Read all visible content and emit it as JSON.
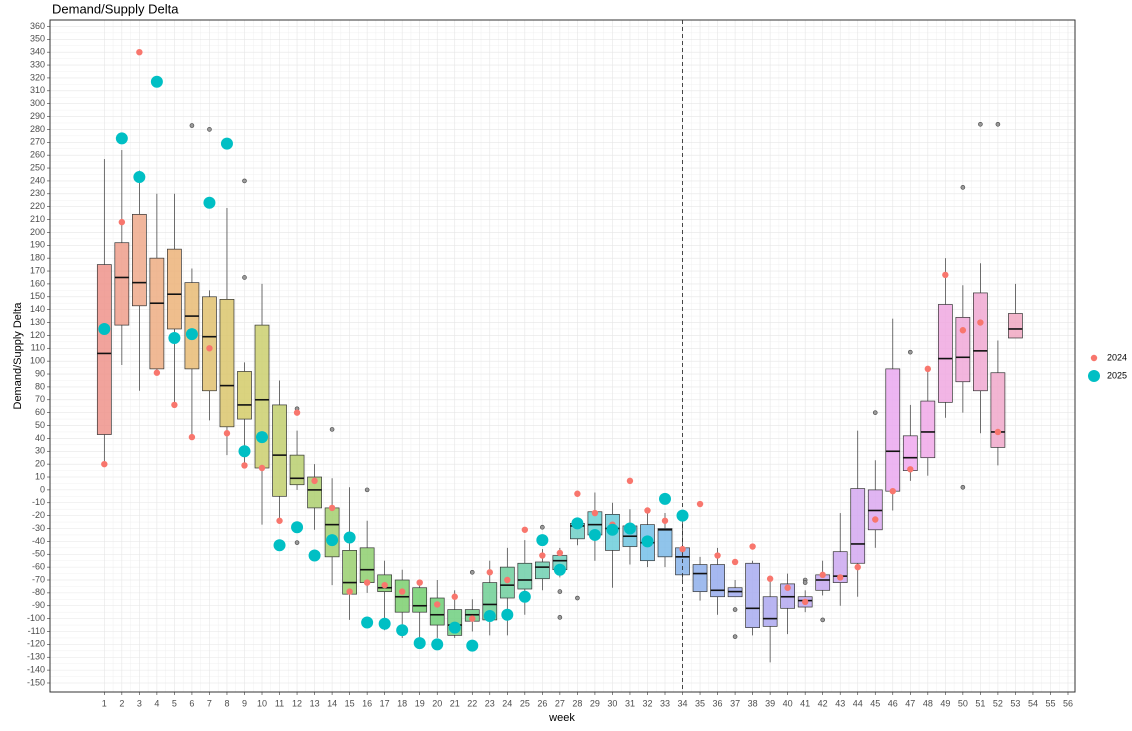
{
  "chart_data": {
    "type": "boxplot",
    "title": "Demand/Supply Delta",
    "x_label": "week",
    "y_label": "Demand/Supply Delta",
    "xlim": [
      -2.1,
      56.4
    ],
    "ylim": [
      -157,
      365
    ],
    "xticks": [
      1,
      2,
      3,
      4,
      5,
      6,
      7,
      8,
      9,
      10,
      11,
      12,
      13,
      14,
      15,
      16,
      17,
      18,
      19,
      20,
      21,
      22,
      23,
      24,
      25,
      26,
      27,
      28,
      29,
      30,
      31,
      32,
      33,
      34,
      35,
      36,
      37,
      38,
      39,
      40,
      41,
      42,
      43,
      44,
      45,
      46,
      47,
      48,
      49,
      50,
      51,
      52,
      53,
      54,
      55,
      56
    ],
    "yticks": [
      -150,
      -140,
      -130,
      -120,
      -110,
      -100,
      -90,
      -80,
      -70,
      -60,
      -50,
      -40,
      -30,
      -20,
      -10,
      0,
      10,
      20,
      30,
      40,
      50,
      60,
      70,
      80,
      90,
      100,
      110,
      120,
      130,
      140,
      150,
      160,
      170,
      180,
      190,
      200,
      210,
      220,
      230,
      240,
      250,
      260,
      270,
      280,
      290,
      300,
      310,
      320,
      330,
      340,
      350,
      360
    ],
    "grid": true,
    "reference_line": {
      "x": 34,
      "style": "dashed"
    },
    "legend_position": "right",
    "boxes": [
      {
        "week": 1,
        "low": 20,
        "q1": 43,
        "median": 106,
        "q3": 175,
        "high": 257,
        "color": "hsl(5,75%,74%)"
      },
      {
        "week": 2,
        "low": 97,
        "q1": 128,
        "median": 165,
        "q3": 192,
        "high": 264,
        "color": "hsl(11,75%,74%)"
      },
      {
        "week": 3,
        "low": 77,
        "q1": 143,
        "median": 161,
        "q3": 214,
        "high": 248,
        "color": "hsl(18,75%,74%)"
      },
      {
        "week": 4,
        "low": 91,
        "q1": 94,
        "median": 145,
        "q3": 180,
        "high": 230,
        "color": "hsl(24,75%,72%)"
      },
      {
        "week": 5,
        "low": 66,
        "q1": 125,
        "median": 152,
        "q3": 187,
        "high": 230,
        "color": "hsl(30,75%,70%)"
      },
      {
        "week": 6,
        "low": 41,
        "q1": 94,
        "median": 135,
        "q3": 161,
        "high": 172,
        "outliers": [
          283
        ],
        "color": "hsl(37,70%,68%)"
      },
      {
        "week": 7,
        "low": 54,
        "q1": 77,
        "median": 119,
        "q3": 150,
        "high": 155,
        "outliers": [
          280
        ],
        "color": "hsl(43,65%,66%)"
      },
      {
        "week": 8,
        "low": 27,
        "q1": 49,
        "median": 81,
        "q3": 148,
        "high": 219,
        "color": "hsl(49,60%,64%)"
      },
      {
        "week": 9,
        "low": 19,
        "q1": 55,
        "median": 66,
        "q3": 92,
        "high": 99,
        "outliers": [
          240,
          165
        ],
        "color": "hsl(55,55%,62%)"
      },
      {
        "week": 10,
        "low": -27,
        "q1": 17,
        "median": 70,
        "q3": 128,
        "high": 160,
        "color": "hsl(62,50%,62%)"
      },
      {
        "week": 11,
        "low": -24,
        "q1": -5,
        "median": 27,
        "q3": 66,
        "high": 85,
        "color": "hsl(68,50%,62%)"
      },
      {
        "week": 12,
        "low": 0,
        "q1": 4,
        "median": 9,
        "q3": 27,
        "high": 46,
        "outliers": [
          63,
          -41
        ],
        "color": "hsl(74,50%,62%)"
      },
      {
        "week": 13,
        "low": -31,
        "q1": -14,
        "median": 0,
        "q3": 10,
        "high": 20,
        "color": "hsl(81,50%,62%)"
      },
      {
        "week": 14,
        "low": -74,
        "q1": -52,
        "median": -27,
        "q3": -14,
        "high": 9,
        "outliers": [
          47
        ],
        "color": "hsl(87,50%,62%)"
      },
      {
        "week": 15,
        "low": -101,
        "q1": -81,
        "median": -72,
        "q3": -47,
        "high": 2,
        "color": "hsl(93,50%,62%)"
      },
      {
        "week": 16,
        "low": -80,
        "q1": -72,
        "median": -62,
        "q3": -45,
        "high": -24,
        "outliers": [
          0
        ],
        "color": "hsl(100,50%,62%)"
      },
      {
        "week": 17,
        "low": -109,
        "q1": -79,
        "median": -76,
        "q3": -66,
        "high": -55,
        "color": "hsl(106,50%,62%)"
      },
      {
        "week": 18,
        "low": -115,
        "q1": -95,
        "median": -83,
        "q3": -70,
        "high": -62,
        "color": "hsl(112,50%,62%)"
      },
      {
        "week": 19,
        "low": -115,
        "q1": -95,
        "median": -90,
        "q3": -76,
        "high": -70,
        "color": "hsl(118,50%,62%)"
      },
      {
        "week": 20,
        "low": -115,
        "q1": -105,
        "median": -97,
        "q3": -84,
        "high": -70,
        "color": "hsl(125,50%,62%)"
      },
      {
        "week": 21,
        "low": -115,
        "q1": -113,
        "median": -105,
        "q3": -93,
        "high": -78,
        "color": "hsl(131,50%,62%)"
      },
      {
        "week": 22,
        "low": -110,
        "q1": -102,
        "median": -97,
        "q3": -93,
        "high": -85,
        "outliers": [
          -64
        ],
        "color": "hsl(137,50%,62%)"
      },
      {
        "week": 23,
        "low": -113,
        "q1": -101,
        "median": -89,
        "q3": -72,
        "high": -55,
        "color": "hsl(144,50%,62%)"
      },
      {
        "week": 24,
        "low": -113,
        "q1": -84,
        "median": -74,
        "q3": -60,
        "high": -45,
        "color": "hsl(150,50%,62%)"
      },
      {
        "week": 25,
        "low": -97,
        "q1": -77,
        "median": -70,
        "q3": -57,
        "high": -39,
        "color": "hsl(156,50%,62%)"
      },
      {
        "week": 26,
        "low": -78,
        "q1": -69,
        "median": -60,
        "q3": -56,
        "high": -46,
        "outliers": [
          -29
        ],
        "color": "hsl(162,50%,62%)"
      },
      {
        "week": 27,
        "low": -68,
        "q1": -62,
        "median": -55,
        "q3": -51,
        "high": -45,
        "outliers": [
          -79,
          -99
        ],
        "color": "hsl(169,50%,62%)"
      },
      {
        "week": 28,
        "low": -43,
        "q1": -38,
        "median": -28,
        "q3": -26,
        "high": -24,
        "outliers": [
          -84
        ],
        "color": "hsl(175,50%,62%)"
      },
      {
        "week": 29,
        "low": -55,
        "q1": -35,
        "median": -27,
        "q3": -17,
        "high": -2,
        "color": "hsl(181,55%,62%)"
      },
      {
        "week": 30,
        "low": -76,
        "q1": -47,
        "median": -30,
        "q3": -19,
        "high": -10,
        "color": "hsl(188,60%,64%)"
      },
      {
        "week": 31,
        "low": -58,
        "q1": -44,
        "median": -36,
        "q3": -28,
        "high": -15,
        "color": "hsl(194,65%,66%)"
      },
      {
        "week": 32,
        "low": -60,
        "q1": -55,
        "median": -41,
        "q3": -27,
        "high": -15,
        "color": "hsl(200,70%,68%)"
      },
      {
        "week": 33,
        "low": -60,
        "q1": -52,
        "median": -31,
        "q3": -30,
        "high": -18,
        "color": "hsl(206,70%,70%)"
      },
      {
        "week": 34,
        "low": -70,
        "q1": -66,
        "median": -52,
        "q3": -45,
        "high": -20,
        "color": "hsl(213,70%,72%)"
      },
      {
        "week": 35,
        "low": -86,
        "q1": -79,
        "median": -65,
        "q3": -58,
        "high": -52,
        "color": "hsl(219,70%,74%)"
      },
      {
        "week": 36,
        "low": -97,
        "q1": -83,
        "median": -78,
        "q3": -58,
        "high": -45,
        "color": "hsl(225,70%,76%)"
      },
      {
        "week": 37,
        "low": -83,
        "q1": -83,
        "median": -79,
        "q3": -76,
        "high": -70,
        "outliers": [
          -93,
          -114
        ],
        "color": "hsl(232,70%,78%)"
      },
      {
        "week": 38,
        "low": -113,
        "q1": -107,
        "median": -92,
        "q3": -57,
        "high": -55,
        "color": "hsl(238,70%,80%)"
      },
      {
        "week": 39,
        "low": -134,
        "q1": -106,
        "median": -100,
        "q3": -83,
        "high": -70,
        "color": "hsl(244,70%,80%)"
      },
      {
        "week": 40,
        "low": -112,
        "q1": -92,
        "median": -83,
        "q3": -73,
        "high": -65,
        "color": "hsl(250,70%,80%)"
      },
      {
        "week": 41,
        "low": -95,
        "q1": -91,
        "median": -86,
        "q3": -83,
        "high": -78,
        "outliers": [
          -70,
          -72
        ],
        "color": "hsl(257,70%,80%)"
      },
      {
        "week": 42,
        "low": -82,
        "q1": -78,
        "median": -70,
        "q3": -66,
        "high": -55,
        "outliers": [
          -101
        ],
        "color": "hsl(263,70%,80%)"
      },
      {
        "week": 43,
        "low": -90,
        "q1": -72,
        "median": -67,
        "q3": -48,
        "high": -18,
        "color": "hsl(269,70%,80%)"
      },
      {
        "week": 44,
        "low": -83,
        "q1": -57,
        "median": -42,
        "q3": 1,
        "high": 46,
        "color": "hsl(276,70%,80%)"
      },
      {
        "week": 45,
        "low": -45,
        "q1": -31,
        "median": -16,
        "q3": 0,
        "high": 23,
        "outliers": [
          60
        ],
        "color": "hsl(282,70%,80%)"
      },
      {
        "week": 46,
        "low": -16,
        "q1": -1,
        "median": 30,
        "q3": 94,
        "high": 133,
        "color": "hsl(295,70%,80%)"
      },
      {
        "week": 47,
        "low": 7,
        "q1": 15,
        "median": 25,
        "q3": 42,
        "high": 66,
        "outliers": [
          107
        ],
        "color": "hsl(301,70%,80%)"
      },
      {
        "week": 48,
        "low": 11,
        "q1": 25,
        "median": 45,
        "q3": 69,
        "high": 95,
        "color": "hsl(307,70%,80%)"
      },
      {
        "week": 49,
        "low": 56,
        "q1": 68,
        "median": 102,
        "q3": 144,
        "high": 180,
        "color": "hsl(313,70%,80%)"
      },
      {
        "week": 50,
        "low": 60,
        "q1": 84,
        "median": 103,
        "q3": 134,
        "high": 159,
        "outliers": [
          235,
          2
        ],
        "color": "hsl(320,70%,80%)"
      },
      {
        "week": 51,
        "low": 44,
        "q1": 77,
        "median": 108,
        "q3": 153,
        "high": 176,
        "outliers": [
          284
        ],
        "color": "hsl(326,70%,80%)"
      },
      {
        "week": 52,
        "low": 19,
        "q1": 33,
        "median": 45,
        "q3": 91,
        "high": 116,
        "outliers": [
          284
        ],
        "color": "hsl(332,70%,80%)"
      },
      {
        "week": 53,
        "low": 118,
        "q1": 118,
        "median": 125,
        "q3": 137,
        "high": 160,
        "color": "hsl(338,70%,80%)"
      }
    ],
    "series": [
      {
        "name": "2024",
        "color": "#F8766D",
        "size": "small",
        "x": [
          1,
          2,
          3,
          4,
          5,
          6,
          7,
          8,
          9,
          10,
          11,
          12,
          13,
          14,
          15,
          16,
          17,
          18,
          19,
          20,
          21,
          22,
          23,
          24,
          25,
          26,
          27,
          28,
          29,
          30,
          31,
          32,
          33,
          34,
          35,
          36,
          37,
          38,
          39,
          40,
          41,
          42,
          43,
          44,
          45,
          46,
          47,
          48,
          49,
          50,
          51,
          52
        ],
        "values": [
          20,
          208,
          340,
          91,
          66,
          41,
          110,
          44,
          19,
          17,
          -24,
          60,
          7,
          -14,
          -79,
          -72,
          -74,
          -79,
          -72,
          -89,
          -83,
          -100,
          -64,
          -70,
          -31,
          -51,
          -49,
          -3,
          -18,
          -27,
          7,
          -16,
          -24,
          -46,
          -11,
          -51,
          -56,
          -44,
          -69,
          -76,
          -87,
          -66,
          -68,
          -60,
          -23,
          -1,
          16,
          94,
          167,
          124,
          130,
          45
        ]
      },
      {
        "name": "2025",
        "color": "#00BFC4",
        "size": "large",
        "x": [
          1,
          2,
          3,
          4,
          5,
          6,
          7,
          8,
          9,
          10,
          11,
          12,
          13,
          14,
          15,
          16,
          17,
          18,
          19,
          20,
          21,
          22,
          23,
          24,
          25,
          26,
          27,
          28,
          29,
          30,
          31,
          32,
          33,
          34
        ],
        "values": [
          125,
          273,
          243,
          317,
          118,
          121,
          223,
          269,
          30,
          41,
          -43,
          -29,
          -51,
          -39,
          -37,
          -103,
          -104,
          -109,
          -119,
          -120,
          -107,
          -121,
          -98,
          -97,
          -83,
          -39,
          -62,
          -26,
          -35,
          -31,
          -30,
          -40,
          -7,
          -20
        ]
      }
    ]
  }
}
